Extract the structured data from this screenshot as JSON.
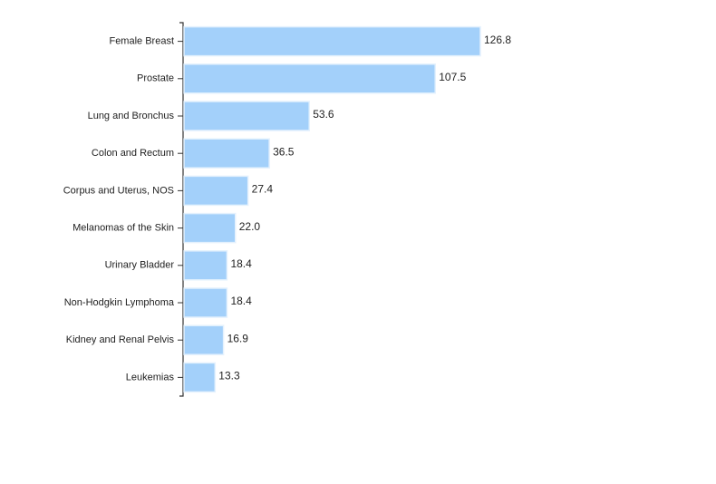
{
  "chart_data": {
    "type": "hbar",
    "categories": [
      "Female Breast",
      "Prostate",
      "Lung and Bronchus",
      "Colon and Rectum",
      "Corpus and Uterus, NOS",
      "Melanomas of the Skin",
      "Urinary Bladder",
      "Non-Hodgkin Lymphoma",
      "Kidney and Renal Pelvis",
      "Leukemias"
    ],
    "values": [
      126.8,
      107.5,
      53.6,
      36.5,
      27.4,
      22.0,
      18.4,
      18.4,
      16.9,
      13.3
    ],
    "value_labels": [
      "126.8",
      "107.5",
      "53.6",
      "36.5",
      "27.4",
      "22.0",
      "18.4",
      "18.4",
      "16.9",
      "13.3"
    ],
    "color": "#a3d0fa"
  }
}
